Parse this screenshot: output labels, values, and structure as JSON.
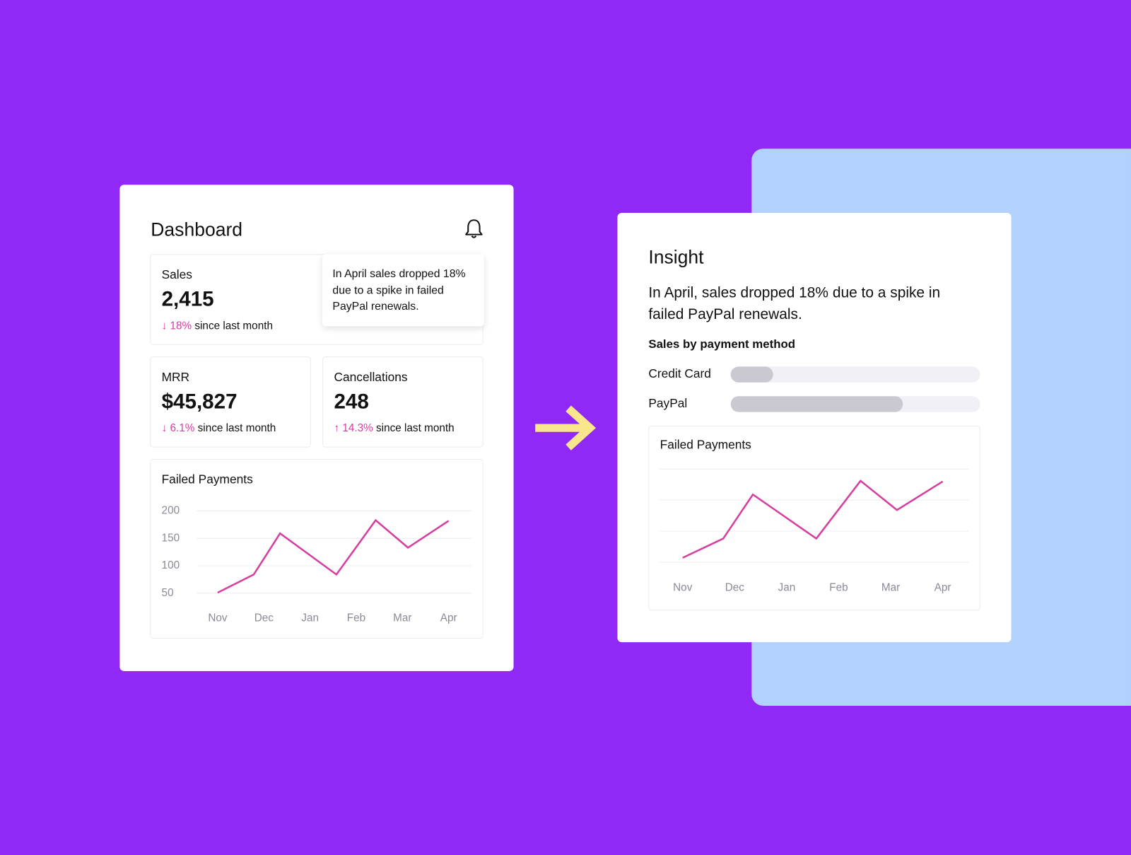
{
  "dashboard": {
    "title": "Dashboard",
    "tooltip": "In April sales dropped 18% due to a spike in failed PayPal renewals.",
    "cards": [
      {
        "label": "Sales",
        "value": "2,415",
        "change": "18%",
        "change_text": "since last month",
        "direction": "down"
      },
      {
        "label": "MRR",
        "value": "$45,827",
        "change": "6.1%",
        "change_text": "since last month",
        "direction": "down"
      },
      {
        "label": "Cancellations",
        "value": "248",
        "change": "14.3%",
        "change_text": "since last month",
        "direction": "up"
      }
    ]
  },
  "insight": {
    "title": "Insight",
    "text": "In April, sales dropped 18% due to a spike in failed PayPal renewals."
  },
  "chart_data": [
    {
      "type": "line",
      "title": "Failed Payments",
      "x": [
        0,
        0.78,
        1.35,
        2.57,
        3.42,
        4.12,
        5
      ],
      "xlim": [
        -0.45,
        5.5
      ],
      "xticks": [
        {
          "value": 0,
          "label": "Nov"
        },
        {
          "value": 1,
          "label": "Dec"
        },
        {
          "value": 2,
          "label": "Jan"
        },
        {
          "value": 3,
          "label": "Feb"
        },
        {
          "value": 4,
          "label": "Mar"
        },
        {
          "value": 5,
          "label": "Apr"
        }
      ],
      "series": [
        {
          "color": "#d63fa0",
          "values": [
            51,
            84,
            159,
            84,
            183,
            133,
            182
          ]
        }
      ],
      "ylim": [
        50,
        200
      ],
      "yticks": [
        50,
        100,
        150,
        200
      ],
      "ytick_labels": true,
      "grid": true
    },
    {
      "type": "hbar",
      "title": "Sales by payment method",
      "categories": [
        "Credit Card",
        "PayPal"
      ],
      "values": [
        17,
        69
      ],
      "xlim": [
        0,
        100
      ],
      "color": "#cac8d0",
      "track_color": "#f1f0f6"
    },
    {
      "type": "line",
      "title": "Failed Payments",
      "x": [
        0,
        0.78,
        1.35,
        2.57,
        3.42,
        4.12,
        5
      ],
      "xlim": [
        -0.45,
        5.5
      ],
      "xticks": [
        {
          "value": 0,
          "label": "Nov"
        },
        {
          "value": 1,
          "label": "Dec"
        },
        {
          "value": 2,
          "label": "Jan"
        },
        {
          "value": 3,
          "label": "Feb"
        },
        {
          "value": 4,
          "label": "Mar"
        },
        {
          "value": 5,
          "label": "Apr"
        }
      ],
      "series": [
        {
          "color": "#d63fa0",
          "values": [
            57,
            88,
            159,
            88,
            181,
            134,
            180
          ]
        }
      ],
      "ylim": [
        50,
        200
      ],
      "yticks": [
        50,
        100,
        150,
        200
      ],
      "ytick_labels": false,
      "grid": true
    }
  ]
}
